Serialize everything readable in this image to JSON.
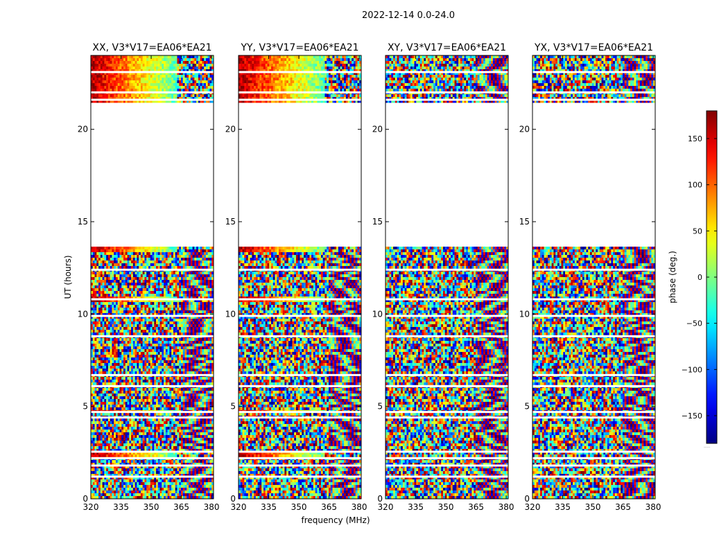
{
  "chart_data": {
    "type": "heatmap",
    "title": "2022-12-14 0.0-24.0",
    "xlabel": "frequency (MHz)",
    "ylabel": "UT (hours)",
    "xlim": [
      320,
      381
    ],
    "ylim": [
      0,
      24
    ],
    "xticks": [
      "320",
      "335",
      "350",
      "365",
      "380"
    ],
    "yticks": [
      "0",
      "5",
      "10",
      "15",
      "20"
    ],
    "panels": [
      {
        "title": "XX, V3*V17=EA06*EA21",
        "coherent": true
      },
      {
        "title": "YY, V3*V17=EA06*EA21",
        "coherent": true
      },
      {
        "title": "XY, V3*V17=EA06*EA21",
        "coherent": false
      },
      {
        "title": "YX, V3*V17=EA06*EA21",
        "coherent": false
      }
    ],
    "colorbar": {
      "label": "phase (deg.)",
      "range": [
        -180,
        180
      ],
      "ticks": [
        "150",
        "100",
        "50",
        "0",
        "−50",
        "−100",
        "−150"
      ],
      "tick_values": [
        150,
        100,
        50,
        0,
        -50,
        -100,
        -150
      ]
    },
    "blank_hours": [
      [
        13.7,
        21.5
      ]
    ],
    "gap_hours": [
      22.0,
      23.1,
      21.6,
      12.4,
      10.8,
      9.9,
      8.8,
      6.7,
      6.1,
      4.7,
      4.4,
      2.55,
      2.2,
      1.8,
      1.2
    ],
    "footnote": "....."
  }
}
